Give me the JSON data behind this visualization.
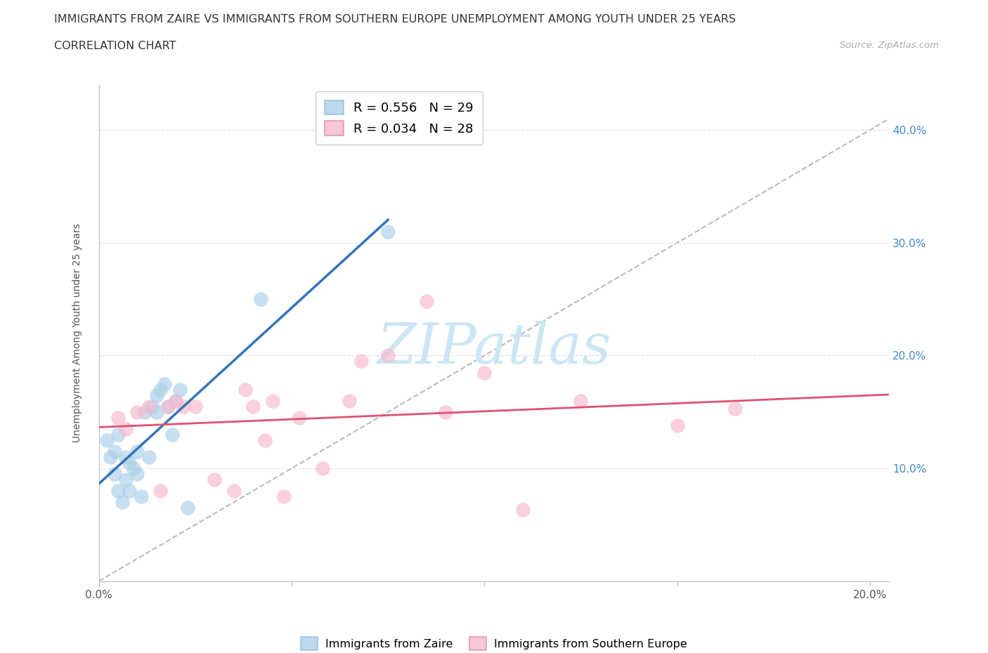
{
  "title_line1": "IMMIGRANTS FROM ZAIRE VS IMMIGRANTS FROM SOUTHERN EUROPE UNEMPLOYMENT AMONG YOUTH UNDER 25 YEARS",
  "title_line2": "CORRELATION CHART",
  "source_text": "Source: ZipAtlas.com",
  "ylabel": "Unemployment Among Youth under 25 years",
  "legend_blue_label": "Immigrants from Zaire",
  "legend_pink_label": "Immigrants from Southern Europe",
  "legend_blue_R": "R = 0.556",
  "legend_blue_N": "N = 29",
  "legend_pink_R": "R = 0.034",
  "legend_pink_N": "N = 28",
  "blue_scatter_color": "#aacfe8",
  "pink_scatter_color": "#f8b8cc",
  "blue_line_color": "#3375bb",
  "pink_line_color": "#e05075",
  "diagonal_color": "#bbbbbb",
  "xlim": [
    0.0,
    0.205
  ],
  "ylim": [
    0.0,
    0.44
  ],
  "blue_x": [
    0.002,
    0.003,
    0.004,
    0.004,
    0.005,
    0.005,
    0.006,
    0.007,
    0.007,
    0.008,
    0.008,
    0.009,
    0.01,
    0.01,
    0.011,
    0.012,
    0.013,
    0.014,
    0.015,
    0.015,
    0.016,
    0.017,
    0.018,
    0.019,
    0.02,
    0.021,
    0.023,
    0.042,
    0.075
  ],
  "blue_y": [
    0.125,
    0.11,
    0.095,
    0.115,
    0.08,
    0.13,
    0.07,
    0.09,
    0.11,
    0.105,
    0.08,
    0.1,
    0.095,
    0.115,
    0.075,
    0.15,
    0.11,
    0.155,
    0.165,
    0.15,
    0.17,
    0.175,
    0.155,
    0.13,
    0.16,
    0.17,
    0.065,
    0.25,
    0.31
  ],
  "pink_x": [
    0.005,
    0.007,
    0.01,
    0.013,
    0.016,
    0.018,
    0.02,
    0.022,
    0.025,
    0.03,
    0.035,
    0.038,
    0.04,
    0.043,
    0.045,
    0.048,
    0.052,
    0.058,
    0.065,
    0.068,
    0.075,
    0.085,
    0.09,
    0.1,
    0.11,
    0.125,
    0.15,
    0.165
  ],
  "pink_y": [
    0.145,
    0.135,
    0.15,
    0.155,
    0.08,
    0.155,
    0.16,
    0.155,
    0.155,
    0.09,
    0.08,
    0.17,
    0.155,
    0.125,
    0.16,
    0.075,
    0.145,
    0.1,
    0.16,
    0.195,
    0.2,
    0.248,
    0.15,
    0.185,
    0.063,
    0.16,
    0.138,
    0.153
  ]
}
